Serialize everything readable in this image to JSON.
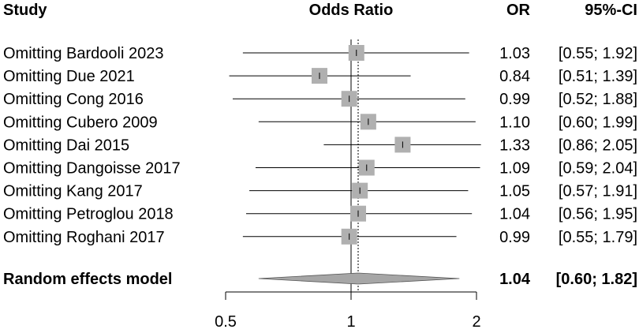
{
  "chart_data": {
    "type": "forest",
    "headers": {
      "study": "Study",
      "effect": "Odds Ratio",
      "or": "OR",
      "ci": "95%-CI"
    },
    "scale": "log",
    "xlim": [
      0.5,
      2
    ],
    "ticks": [
      {
        "value": 0.5,
        "label": "0.5"
      },
      {
        "value": 1,
        "label": "1"
      },
      {
        "value": 2,
        "label": "2"
      }
    ],
    "reference_line": 1,
    "pooled_line": 1.04,
    "rows": [
      {
        "label": "Omitting Bardooli 2023",
        "or": 1.03,
        "lower": 0.55,
        "upper": 1.92,
        "or_text": "1.03",
        "ci_text": "[0.55; 1.92]"
      },
      {
        "label": "Omitting Due 2021",
        "or": 0.84,
        "lower": 0.51,
        "upper": 1.39,
        "or_text": "0.84",
        "ci_text": "[0.51; 1.39]"
      },
      {
        "label": "Omitting Cong 2016",
        "or": 0.99,
        "lower": 0.52,
        "upper": 1.88,
        "or_text": "0.99",
        "ci_text": "[0.52; 1.88]"
      },
      {
        "label": "Omitting Cubero 2009",
        "or": 1.1,
        "lower": 0.6,
        "upper": 1.99,
        "or_text": "1.10",
        "ci_text": "[0.60; 1.99]"
      },
      {
        "label": "Omitting Dai 2015",
        "or": 1.33,
        "lower": 0.86,
        "upper": 2.05,
        "or_text": "1.33",
        "ci_text": "[0.86; 2.05]"
      },
      {
        "label": "Omitting Dangoisse 2017",
        "or": 1.09,
        "lower": 0.59,
        "upper": 2.04,
        "or_text": "1.09",
        "ci_text": "[0.59; 2.04]"
      },
      {
        "label": "Omitting Kang 2017",
        "or": 1.05,
        "lower": 0.57,
        "upper": 1.91,
        "or_text": "1.05",
        "ci_text": "[0.57; 1.91]"
      },
      {
        "label": "Omitting Petroglou 2018",
        "or": 1.04,
        "lower": 0.56,
        "upper": 1.95,
        "or_text": "1.04",
        "ci_text": "[0.56; 1.95]"
      },
      {
        "label": "Omitting Roghani 2017",
        "or": 0.99,
        "lower": 0.55,
        "upper": 1.79,
        "or_text": "0.99",
        "ci_text": "[0.55; 1.79]"
      }
    ],
    "summary": {
      "label": "Random effects model",
      "or": 1.04,
      "lower": 0.6,
      "upper": 1.82,
      "or_text": "1.04",
      "ci_text": "[0.60; 1.82]"
    },
    "colors": {
      "square": "#b0b0b0",
      "diamond": "#a6a6a6",
      "line": "#000000"
    }
  }
}
